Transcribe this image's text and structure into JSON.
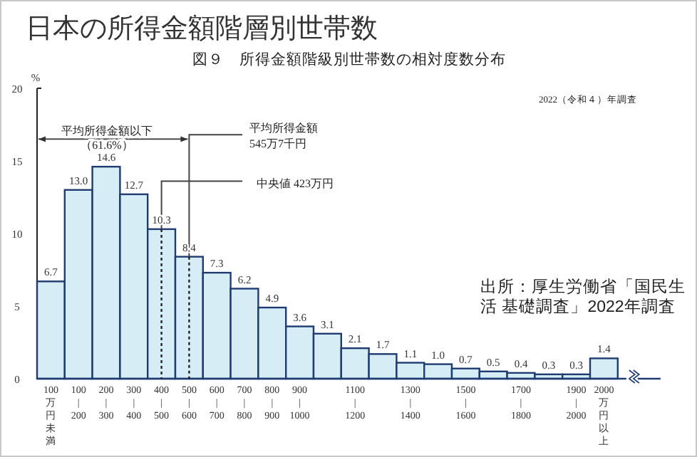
{
  "chart_data": {
    "type": "bar",
    "title": "日本の所得金額階層別世帯数",
    "subtitle": "図９　所得金額階級別世帯数の相対度数分布",
    "ylabel": "%",
    "categories": [
      "100万円未満",
      "100\n|\n200",
      "200\n|\n300",
      "300\n|\n400",
      "400\n|\n500",
      "500\n|\n600",
      "600\n|\n700",
      "700\n|\n800",
      "800\n|\n900",
      "900\n|\n1000",
      null,
      "1100\n|\n1200",
      null,
      "1300\n|\n1400",
      null,
      "1500\n|\n1600",
      null,
      "1700\n|\n1800",
      null,
      "1900\n|\n2000",
      "2000万円以上"
    ],
    "values": [
      6.7,
      13.0,
      14.6,
      12.7,
      10.3,
      8.4,
      7.3,
      6.2,
      4.9,
      3.6,
      3.1,
      2.1,
      1.7,
      1.1,
      1.0,
      0.7,
      0.5,
      0.4,
      0.3,
      0.3,
      1.4
    ],
    "value_labels": [
      "6.7",
      "13.0",
      "14.6",
      "12.7",
      "10.3",
      "8.4",
      "7.3",
      "6.2",
      "4.9",
      "3.6",
      "3.1",
      "2.1",
      "1.7",
      "1.1",
      "1.0",
      "0.7",
      "0.5",
      "0.4",
      "0.3",
      "0.3",
      "1.4"
    ],
    "color": "#d6edf6",
    "ylim": [
      0,
      20
    ],
    "yticks": [
      0,
      5,
      10,
      15,
      20
    ],
    "annotations": [
      "2022（令和４）年調査",
      "平均所得金額以下（61.6%）",
      "出所：厚生労働省「国民生活 基礎調査」2022年調査",
      {
        "text": "中央値 423万円",
        "x": "400\n|\n500",
        "y": 10.3
      },
      {
        "text": "平均所得金額\n545万7千円",
        "x": "500\n|\n600",
        "y": 8.4
      }
    ]
  }
}
